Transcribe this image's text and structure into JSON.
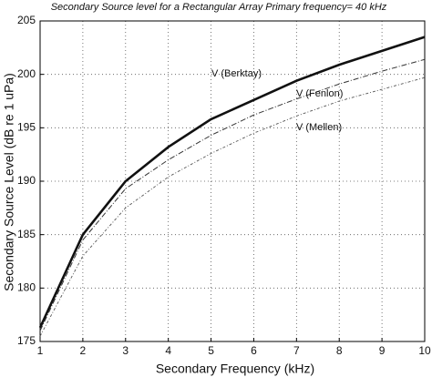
{
  "chart_data": {
    "type": "line",
    "title": "Secondary Source level for a Rectangular Array Primary frequency= 40 kHz",
    "x_label": "Secondary Frequency (kHz)",
    "y_label": "Secondary Source Level (dB re 1 uPa)",
    "x": [
      1,
      2,
      3,
      4,
      5,
      6,
      7,
      8,
      9,
      10
    ],
    "series": [
      {
        "name": "V (Berktay)",
        "color": "#111111",
        "values": [
          176.3,
          185.0,
          190.0,
          193.2,
          195.8,
          197.6,
          199.4,
          200.9,
          202.2,
          203.5
        ]
      },
      {
        "name": "V (Fenlon)",
        "color": "#333333",
        "values": [
          176.0,
          184.5,
          189.3,
          192.0,
          194.3,
          196.2,
          197.7,
          199.1,
          200.3,
          201.4
        ]
      },
      {
        "name": "V (Mellen)",
        "color": "#555555",
        "values": [
          175.5,
          183.0,
          187.5,
          190.4,
          192.6,
          194.5,
          196.1,
          197.5,
          198.6,
          199.7
        ]
      }
    ],
    "xlim": [
      1,
      10
    ],
    "xticks": [
      1,
      2,
      3,
      4,
      5,
      6,
      7,
      8,
      9,
      10
    ],
    "ylim": [
      175,
      205
    ],
    "yticks": [
      175,
      180,
      185,
      190,
      195,
      200,
      205
    ],
    "grid": true
  }
}
